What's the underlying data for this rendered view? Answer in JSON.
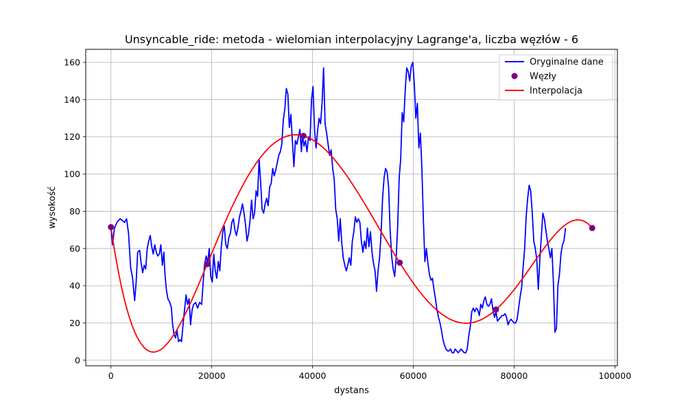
{
  "chart_data": {
    "type": "line",
    "title": "Unsyncable_ride: metoda - wielomian interpolacyjny Lagrange'a, liczba węzłów - 6",
    "xlabel": "dystans",
    "ylabel": "wysokość",
    "xlim": [
      -5000,
      100500
    ],
    "ylim": [
      -3,
      167
    ],
    "xticks": [
      0,
      20000,
      40000,
      60000,
      80000,
      100000
    ],
    "yticks": [
      0,
      20,
      40,
      60,
      80,
      100,
      120,
      140,
      160
    ],
    "grid": true,
    "legend_position": "top-right",
    "series": [
      {
        "name": "Oryginalne dane",
        "kind": "line",
        "color": "#0000ff",
        "points": [
          [
            0,
            71.5
          ],
          [
            300,
            62
          ],
          [
            700,
            71
          ],
          [
            1200,
            74
          ],
          [
            1800,
            76
          ],
          [
            2300,
            75
          ],
          [
            2700,
            74
          ],
          [
            3100,
            76
          ],
          [
            3500,
            68
          ],
          [
            3900,
            50
          ],
          [
            4300,
            44
          ],
          [
            4700,
            32
          ],
          [
            5000,
            42
          ],
          [
            5300,
            58
          ],
          [
            5700,
            59
          ],
          [
            6000,
            52
          ],
          [
            6300,
            47
          ],
          [
            6600,
            51
          ],
          [
            6900,
            49
          ],
          [
            7200,
            60
          ],
          [
            7500,
            64
          ],
          [
            7800,
            67
          ],
          [
            8100,
            61
          ],
          [
            8400,
            57
          ],
          [
            8700,
            62
          ],
          [
            9000,
            58
          ],
          [
            9300,
            56
          ],
          [
            9600,
            57
          ],
          [
            9900,
            62
          ],
          [
            10200,
            51
          ],
          [
            10500,
            58
          ],
          [
            10700,
            47
          ],
          [
            11000,
            38
          ],
          [
            11300,
            33
          ],
          [
            11700,
            31
          ],
          [
            12000,
            28
          ],
          [
            12200,
            20
          ],
          [
            12500,
            14
          ],
          [
            12800,
            12
          ],
          [
            13100,
            16
          ],
          [
            13400,
            10
          ],
          [
            13700,
            11
          ],
          [
            14000,
            10
          ],
          [
            14300,
            19
          ],
          [
            14600,
            27
          ],
          [
            14900,
            35
          ],
          [
            15200,
            30
          ],
          [
            15500,
            33
          ],
          [
            15800,
            19
          ],
          [
            16100,
            27
          ],
          [
            16400,
            30
          ],
          [
            16800,
            31
          ],
          [
            17200,
            28
          ],
          [
            17600,
            31
          ],
          [
            18000,
            30
          ],
          [
            18300,
            42
          ],
          [
            18600,
            52
          ],
          [
            18900,
            56
          ],
          [
            19200,
            52
          ],
          [
            19500,
            60
          ],
          [
            19800,
            45
          ],
          [
            20100,
            42
          ],
          [
            20400,
            57
          ],
          [
            20700,
            48
          ],
          [
            21000,
            44
          ],
          [
            21300,
            53
          ],
          [
            21600,
            48
          ],
          [
            21900,
            61
          ],
          [
            22200,
            69
          ],
          [
            22500,
            72
          ],
          [
            22800,
            62
          ],
          [
            23100,
            60
          ],
          [
            23400,
            66
          ],
          [
            23700,
            68
          ],
          [
            24000,
            74
          ],
          [
            24300,
            76
          ],
          [
            24600,
            70
          ],
          [
            24900,
            67
          ],
          [
            25200,
            71
          ],
          [
            25500,
            77
          ],
          [
            25800,
            80
          ],
          [
            26100,
            84
          ],
          [
            26400,
            79
          ],
          [
            26700,
            73
          ],
          [
            27000,
            64
          ],
          [
            27300,
            68
          ],
          [
            27600,
            75
          ],
          [
            27900,
            86
          ],
          [
            28200,
            76
          ],
          [
            28500,
            79
          ],
          [
            28800,
            91
          ],
          [
            29100,
            88
          ],
          [
            29400,
            108
          ],
          [
            29700,
            96
          ],
          [
            30000,
            81
          ],
          [
            30300,
            79
          ],
          [
            30600,
            84
          ],
          [
            30900,
            87
          ],
          [
            31200,
            83
          ],
          [
            31500,
            93
          ],
          [
            31800,
            95
          ],
          [
            32100,
            103
          ],
          [
            32400,
            99
          ],
          [
            32700,
            102
          ],
          [
            33000,
            106
          ],
          [
            33300,
            110
          ],
          [
            33600,
            112
          ],
          [
            33900,
            116
          ],
          [
            34200,
            129
          ],
          [
            34500,
            135
          ],
          [
            34800,
            146
          ],
          [
            35100,
            143
          ],
          [
            35400,
            125
          ],
          [
            35700,
            132
          ],
          [
            36000,
            118
          ],
          [
            36300,
            104
          ],
          [
            36600,
            118
          ],
          [
            36900,
            116
          ],
          [
            37200,
            120
          ],
          [
            37500,
            124
          ],
          [
            37800,
            112
          ],
          [
            38000,
            121
          ],
          [
            38300,
            115
          ],
          [
            38600,
            118
          ],
          [
            38900,
            112
          ],
          [
            39200,
            120
          ],
          [
            39500,
            118
          ],
          [
            39800,
            140
          ],
          [
            40100,
            147
          ],
          [
            40400,
            124
          ],
          [
            40700,
            114
          ],
          [
            41000,
            123
          ],
          [
            41300,
            130
          ],
          [
            41600,
            127
          ],
          [
            41900,
            138
          ],
          [
            42200,
            157
          ],
          [
            42500,
            127
          ],
          [
            42800,
            122
          ],
          [
            43100,
            116
          ],
          [
            43400,
            110
          ],
          [
            43700,
            113
          ],
          [
            44000,
            103
          ],
          [
            44300,
            97
          ],
          [
            44600,
            81
          ],
          [
            44900,
            76
          ],
          [
            45200,
            64
          ],
          [
            45500,
            76
          ],
          [
            45800,
            63
          ],
          [
            46100,
            55
          ],
          [
            46400,
            51
          ],
          [
            46700,
            48
          ],
          [
            47000,
            51
          ],
          [
            47300,
            55
          ],
          [
            47600,
            51
          ],
          [
            47900,
            64
          ],
          [
            48200,
            69
          ],
          [
            48500,
            77
          ],
          [
            48800,
            74
          ],
          [
            49100,
            76
          ],
          [
            49400,
            74
          ],
          [
            49700,
            64
          ],
          [
            50000,
            58
          ],
          [
            50300,
            64
          ],
          [
            50600,
            60
          ],
          [
            50900,
            71
          ],
          [
            51200,
            61
          ],
          [
            51500,
            69
          ],
          [
            51800,
            58
          ],
          [
            52100,
            52
          ],
          [
            52400,
            48
          ],
          [
            52700,
            37
          ],
          [
            53000,
            48
          ],
          [
            53300,
            55
          ],
          [
            53600,
            68
          ],
          [
            53900,
            87
          ],
          [
            54200,
            98
          ],
          [
            54500,
            103
          ],
          [
            54800,
            101
          ],
          [
            55100,
            93
          ],
          [
            55400,
            70
          ],
          [
            55700,
            56
          ],
          [
            56000,
            49
          ],
          [
            56300,
            45
          ],
          [
            56600,
            55
          ],
          [
            56900,
            72
          ],
          [
            57200,
            98
          ],
          [
            57500,
            108
          ],
          [
            57800,
            133
          ],
          [
            58100,
            128
          ],
          [
            58400,
            145
          ],
          [
            58700,
            157
          ],
          [
            59000,
            155
          ],
          [
            59300,
            150
          ],
          [
            59600,
            158
          ],
          [
            59900,
            160
          ],
          [
            60200,
            148
          ],
          [
            60500,
            130
          ],
          [
            60800,
            138
          ],
          [
            61100,
            114
          ],
          [
            61400,
            122
          ],
          [
            61700,
            103
          ],
          [
            62000,
            75
          ],
          [
            62300,
            53
          ],
          [
            62600,
            60
          ],
          [
            62900,
            52
          ],
          [
            63200,
            46
          ],
          [
            63500,
            43
          ],
          [
            63800,
            44
          ],
          [
            64100,
            38
          ],
          [
            64400,
            33
          ],
          [
            64700,
            27
          ],
          [
            65000,
            23
          ],
          [
            65300,
            20
          ],
          [
            65600,
            16
          ],
          [
            65900,
            11
          ],
          [
            66200,
            8
          ],
          [
            66500,
            6
          ],
          [
            66800,
            5
          ],
          [
            67100,
            5
          ],
          [
            67400,
            6
          ],
          [
            67700,
            4
          ],
          [
            68000,
            4
          ],
          [
            68300,
            6
          ],
          [
            68600,
            5
          ],
          [
            68900,
            4
          ],
          [
            69200,
            5
          ],
          [
            69500,
            6
          ],
          [
            69800,
            5
          ],
          [
            70100,
            4
          ],
          [
            70400,
            4
          ],
          [
            70700,
            6
          ],
          [
            71000,
            13
          ],
          [
            71300,
            18
          ],
          [
            71600,
            26
          ],
          [
            71900,
            28
          ],
          [
            72200,
            26
          ],
          [
            72500,
            28
          ],
          [
            72800,
            27
          ],
          [
            73100,
            24
          ],
          [
            73400,
            30
          ],
          [
            73700,
            28
          ],
          [
            74000,
            32
          ],
          [
            74300,
            34
          ],
          [
            74600,
            30
          ],
          [
            74900,
            29
          ],
          [
            75200,
            30
          ],
          [
            75500,
            33
          ],
          [
            75800,
            27
          ],
          [
            76100,
            23
          ],
          [
            76400,
            26
          ],
          [
            76700,
            21
          ],
          [
            77000,
            22
          ],
          [
            77300,
            23
          ],
          [
            77600,
            24
          ],
          [
            77900,
            24
          ],
          [
            78200,
            25
          ],
          [
            78500,
            23
          ],
          [
            78800,
            19
          ],
          [
            79100,
            21
          ],
          [
            79400,
            22
          ],
          [
            79700,
            21
          ],
          [
            80000,
            20
          ],
          [
            80300,
            20
          ],
          [
            80600,
            22
          ],
          [
            80900,
            28
          ],
          [
            81200,
            34
          ],
          [
            81500,
            39
          ],
          [
            81800,
            50
          ],
          [
            82100,
            60
          ],
          [
            82400,
            77
          ],
          [
            82700,
            87
          ],
          [
            83000,
            94
          ],
          [
            83300,
            91
          ],
          [
            83600,
            79
          ],
          [
            83900,
            64
          ],
          [
            84200,
            60
          ],
          [
            84500,
            54
          ],
          [
            84800,
            38
          ],
          [
            85100,
            54
          ],
          [
            85400,
            66
          ],
          [
            85700,
            79
          ],
          [
            86000,
            76
          ],
          [
            86300,
            70
          ],
          [
            86600,
            64
          ],
          [
            86900,
            60
          ],
          [
            87200,
            55
          ],
          [
            87500,
            60
          ],
          [
            87800,
            42
          ],
          [
            88100,
            15
          ],
          [
            88400,
            17
          ],
          [
            88700,
            40
          ],
          [
            89000,
            46
          ],
          [
            89300,
            57
          ],
          [
            89600,
            62
          ],
          [
            89900,
            64
          ],
          [
            90200,
            71
          ]
        ]
      },
      {
        "name": "Węzły",
        "kind": "scatter",
        "color": "#800080",
        "points": [
          [
            0,
            71.5
          ],
          [
            19100,
            51.6
          ],
          [
            38200,
            120.5
          ],
          [
            57300,
            52.4
          ],
          [
            76400,
            27.2
          ],
          [
            95500,
            71
          ]
        ]
      },
      {
        "name": "Interpolacja",
        "kind": "lagrange",
        "color": "#ff0000",
        "points": []
      }
    ]
  }
}
